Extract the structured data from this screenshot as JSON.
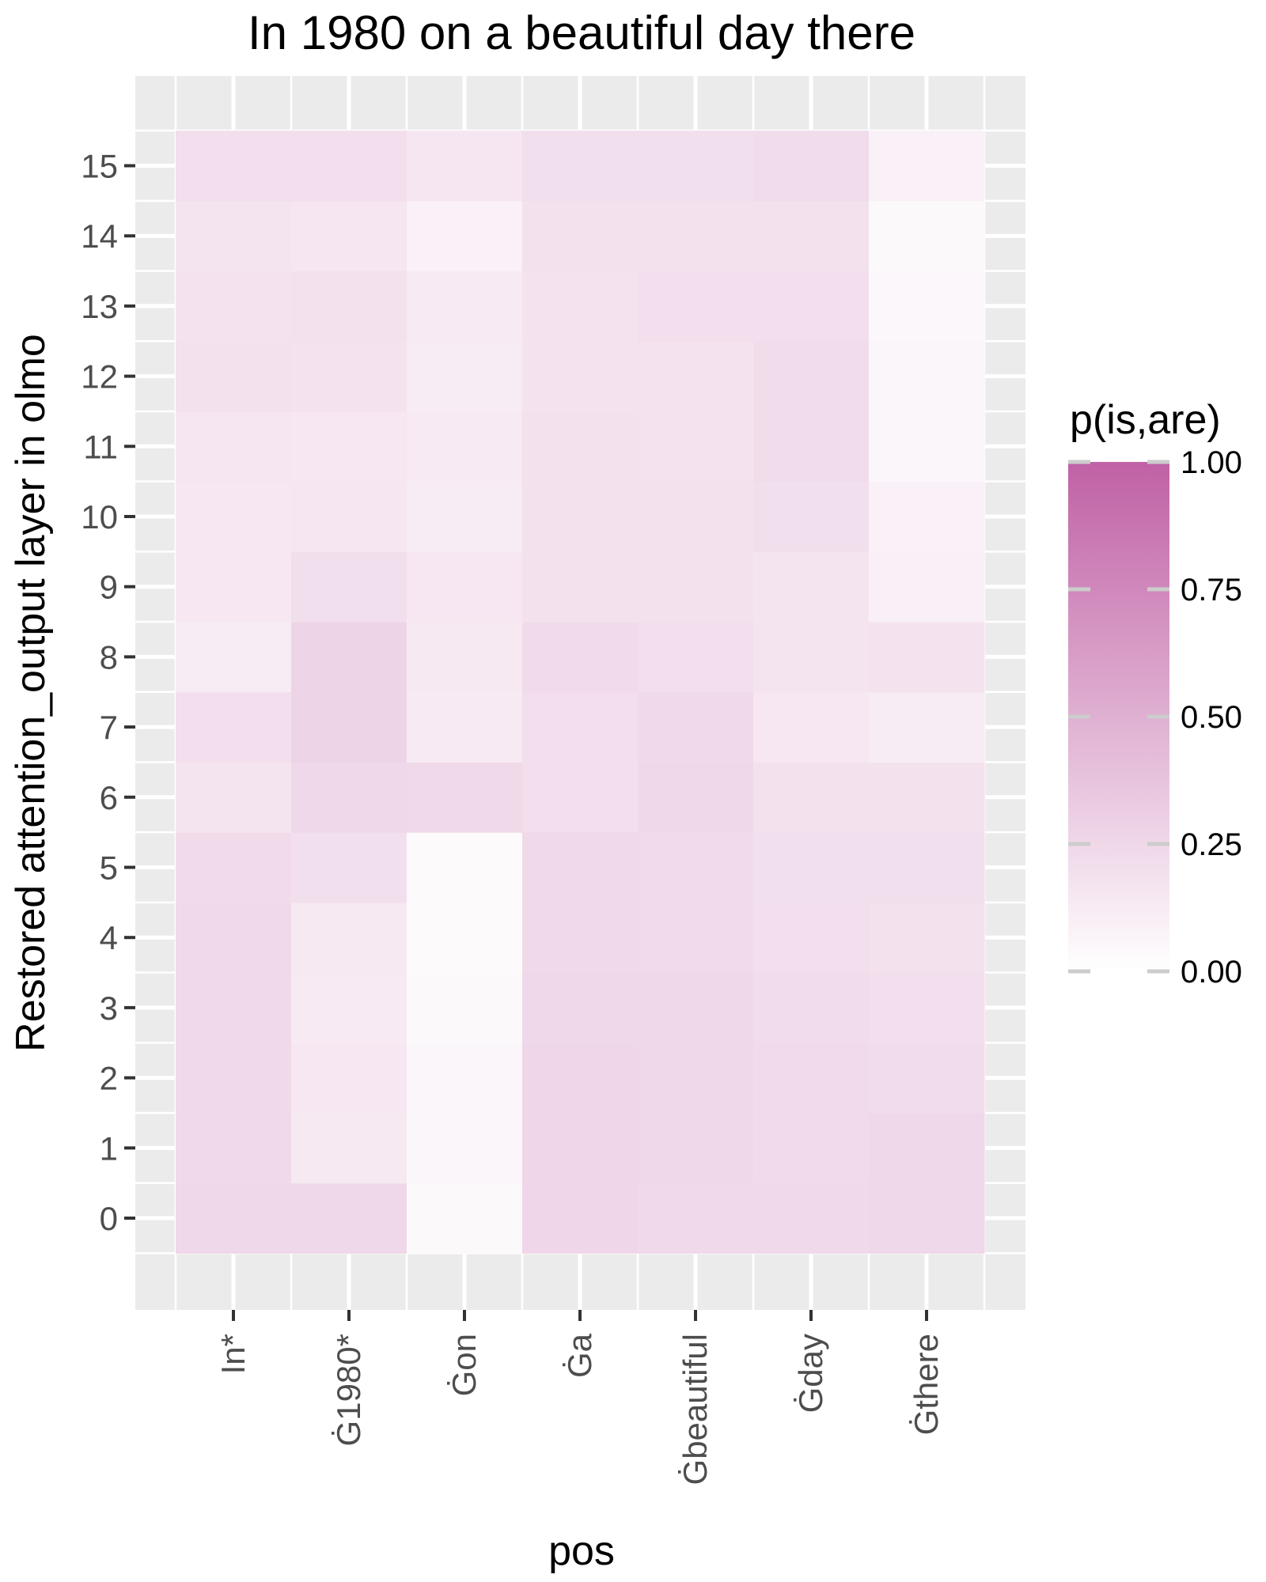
{
  "chart_data": {
    "type": "heatmap",
    "title": "In 1980 on a beautiful day there",
    "xlabel": "pos",
    "ylabel": "Restored attention_output layer in olmo",
    "x_categories": [
      "In*",
      "Ġ1980*",
      "Ġon",
      "Ġa",
      "Ġbeautiful",
      "Ġday",
      "Ġthere"
    ],
    "y_categories": [
      "0",
      "1",
      "2",
      "3",
      "4",
      "5",
      "6",
      "7",
      "8",
      "9",
      "10",
      "11",
      "12",
      "13",
      "14",
      "15"
    ],
    "values": [
      [
        0.25,
        0.25,
        0.04,
        0.26,
        0.24,
        0.24,
        0.25
      ],
      [
        0.24,
        0.14,
        0.06,
        0.26,
        0.25,
        0.23,
        0.25
      ],
      [
        0.24,
        0.15,
        0.06,
        0.26,
        0.25,
        0.23,
        0.22
      ],
      [
        0.24,
        0.13,
        0.04,
        0.25,
        0.25,
        0.22,
        0.21
      ],
      [
        0.24,
        0.14,
        0.03,
        0.24,
        0.23,
        0.21,
        0.19
      ],
      [
        0.23,
        0.2,
        0.03,
        0.24,
        0.23,
        0.2,
        0.2
      ],
      [
        0.17,
        0.25,
        0.24,
        0.21,
        0.25,
        0.19,
        0.19
      ],
      [
        0.21,
        0.27,
        0.13,
        0.21,
        0.24,
        0.15,
        0.12
      ],
      [
        0.12,
        0.27,
        0.14,
        0.23,
        0.21,
        0.17,
        0.18
      ],
      [
        0.15,
        0.2,
        0.15,
        0.19,
        0.19,
        0.17,
        0.1
      ],
      [
        0.15,
        0.16,
        0.12,
        0.19,
        0.19,
        0.2,
        0.09
      ],
      [
        0.16,
        0.15,
        0.13,
        0.19,
        0.18,
        0.22,
        0.06
      ],
      [
        0.19,
        0.18,
        0.12,
        0.18,
        0.18,
        0.22,
        0.06
      ],
      [
        0.18,
        0.19,
        0.13,
        0.18,
        0.21,
        0.21,
        0.05
      ],
      [
        0.17,
        0.16,
        0.09,
        0.19,
        0.19,
        0.19,
        0.04
      ],
      [
        0.21,
        0.21,
        0.16,
        0.2,
        0.2,
        0.22,
        0.09
      ]
    ],
    "legend": {
      "title": "p(is,are)",
      "ticks": [
        1.0,
        0.75,
        0.5,
        0.25,
        0.0
      ],
      "tick_labels": [
        "1.00",
        "0.75",
        "0.50",
        "0.25",
        "0.00"
      ],
      "range": [
        0,
        1
      ],
      "low_color": "#ffffff",
      "high_color": "#c061a5"
    },
    "panel_background": "#ebebeb",
    "grid": true,
    "legend_position": "right"
  }
}
